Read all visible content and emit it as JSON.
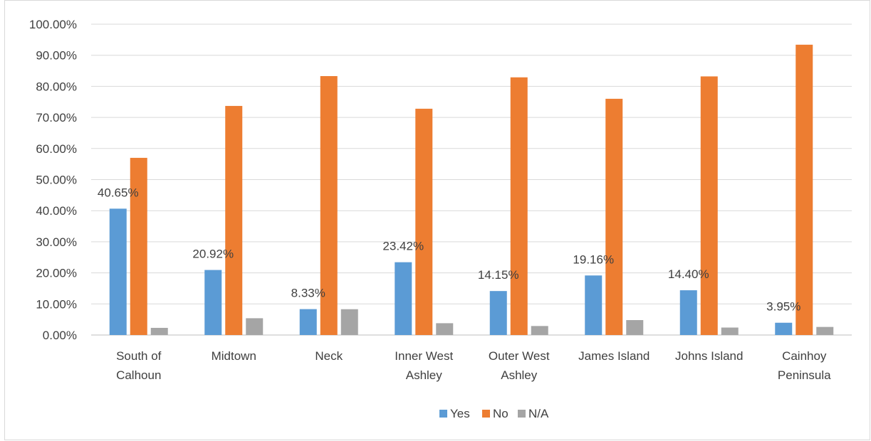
{
  "chart_data": {
    "type": "bar",
    "categories": [
      [
        "South of",
        "Calhoun"
      ],
      [
        "Midtown"
      ],
      [
        "Neck"
      ],
      [
        "Inner West",
        "Ashley"
      ],
      [
        "Outer West",
        "Ashley"
      ],
      [
        "James Island"
      ],
      [
        "Johns Island"
      ],
      [
        "Cainhoy",
        "Peninsula"
      ]
    ],
    "series": [
      {
        "name": "Yes",
        "color": "#5b9bd5",
        "values": [
          40.65,
          20.92,
          8.33,
          23.42,
          14.15,
          19.16,
          14.4,
          3.95
        ],
        "data_labels": [
          "40.65%",
          "20.92%",
          "8.33%",
          "23.42%",
          "14.15%",
          "19.16%",
          "14.40%",
          "3.95%"
        ]
      },
      {
        "name": "No",
        "color": "#ed7d31",
        "values": [
          57.0,
          73.7,
          83.3,
          72.8,
          82.9,
          76.0,
          83.2,
          93.4
        ]
      },
      {
        "name": "N/A",
        "color": "#a5a5a5",
        "values": [
          2.3,
          5.4,
          8.3,
          3.8,
          2.9,
          4.8,
          2.4,
          2.6
        ]
      }
    ],
    "ylim": [
      0,
      100
    ],
    "yticks": [
      "0.00%",
      "10.00%",
      "20.00%",
      "30.00%",
      "40.00%",
      "50.00%",
      "60.00%",
      "70.00%",
      "80.00%",
      "90.00%",
      "100.00%"
    ],
    "grid": true,
    "legend": "bottom"
  }
}
